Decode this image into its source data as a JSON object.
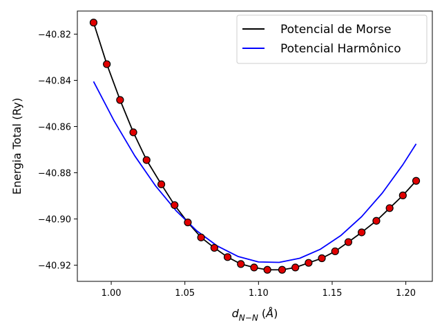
{
  "chart_data": {
    "type": "line",
    "xlabel": "d_{N-N} (Å)",
    "ylabel": "Energia Total (Ry)",
    "xlim": [
      0.977,
      1.218
    ],
    "ylim": [
      -40.927,
      -40.81
    ],
    "xticks": [
      1.0,
      1.05,
      1.1,
      1.15,
      1.2
    ],
    "xtick_labels": [
      "1.00",
      "1.05",
      "1.10",
      "1.15",
      "1.20"
    ],
    "yticks": [
      -40.82,
      -40.84,
      -40.86,
      -40.88,
      -40.9,
      -40.92
    ],
    "ytick_labels": [
      "−40.82",
      "−40.84",
      "−40.86",
      "−40.88",
      "−40.90",
      "−40.92"
    ],
    "legend_position": "upper-right",
    "series": [
      {
        "name": "Potencial de Morse",
        "kind": "line",
        "color": "#000000",
        "x": [
          0.988,
          0.997,
          1.006,
          1.015,
          1.024,
          1.034,
          1.043,
          1.052,
          1.061,
          1.07,
          1.079,
          1.088,
          1.097,
          1.106,
          1.116,
          1.125,
          1.134,
          1.143,
          1.152,
          1.161,
          1.17,
          1.18,
          1.189,
          1.198,
          1.207
        ],
        "y": [
          -40.815,
          -40.833,
          -40.8485,
          -40.8625,
          -40.8745,
          -40.885,
          -40.894,
          -40.9015,
          -40.908,
          -40.9125,
          -40.9165,
          -40.9195,
          -40.921,
          -40.922,
          -40.922,
          -40.921,
          -40.919,
          -40.917,
          -40.914,
          -40.91,
          -40.9058,
          -40.9008,
          -40.8953,
          -40.8898,
          -40.8835
        ]
      },
      {
        "name": "Potencial Harmônico",
        "kind": "line",
        "color": "#0000ff",
        "x": [
          0.988,
          1.002,
          1.016,
          1.03,
          1.044,
          1.058,
          1.072,
          1.086,
          1.1,
          1.114,
          1.128,
          1.142,
          1.156,
          1.17,
          1.184,
          1.198,
          1.207
        ],
        "y": [
          -40.8405,
          -40.8576,
          -40.8727,
          -40.8856,
          -40.8964,
          -40.9051,
          -40.9117,
          -40.9162,
          -40.9186,
          -40.9188,
          -40.917,
          -40.9131,
          -40.9071,
          -40.899,
          -40.8888,
          -40.8765,
          -40.8675
        ]
      },
      {
        "name": "",
        "kind": "markers",
        "color": "#e00000",
        "edge_color": "#000000",
        "x": [
          0.988,
          0.997,
          1.006,
          1.015,
          1.024,
          1.034,
          1.043,
          1.052,
          1.061,
          1.07,
          1.079,
          1.088,
          1.097,
          1.106,
          1.116,
          1.125,
          1.134,
          1.143,
          1.152,
          1.161,
          1.17,
          1.18,
          1.189,
          1.198,
          1.207
        ],
        "y": [
          -40.815,
          -40.833,
          -40.8485,
          -40.8625,
          -40.8745,
          -40.885,
          -40.894,
          -40.9015,
          -40.908,
          -40.9125,
          -40.9165,
          -40.9195,
          -40.921,
          -40.922,
          -40.922,
          -40.921,
          -40.919,
          -40.917,
          -40.914,
          -40.91,
          -40.9058,
          -40.9008,
          -40.8953,
          -40.8898,
          -40.8835
        ]
      }
    ]
  }
}
